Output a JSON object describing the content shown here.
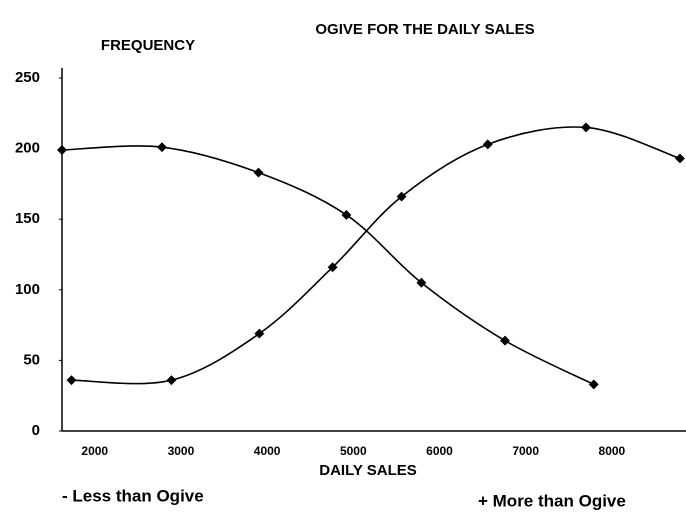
{
  "chart_data": {
    "type": "line",
    "title": "OGIVE FOR THE DAILY SALES",
    "y_label": "FREQUENCY",
    "x_label": "DAILY SALES",
    "xlim": [
      1620,
      8860
    ],
    "xticks": [
      2000,
      3000,
      4000,
      5000,
      6000,
      7000,
      8000
    ],
    "ylim": [
      0,
      250
    ],
    "yticks": [
      0,
      50,
      100,
      150,
      200,
      250
    ],
    "grid": false,
    "series": [
      {
        "name": "- Less than Ogive",
        "color": "#000000",
        "x": [
          1730,
          2890,
          3910,
          4760,
          5560,
          6560,
          7700,
          8790
        ],
        "values": [
          36,
          36,
          69,
          116,
          166,
          203,
          215,
          193
        ]
      },
      {
        "name": "+ More than Ogive",
        "color": "#000000",
        "x": [
          1620,
          2780,
          3900,
          4920,
          5790,
          6760,
          7790
        ],
        "values": [
          199,
          201,
          183,
          153,
          105,
          64,
          33
        ]
      }
    ]
  }
}
